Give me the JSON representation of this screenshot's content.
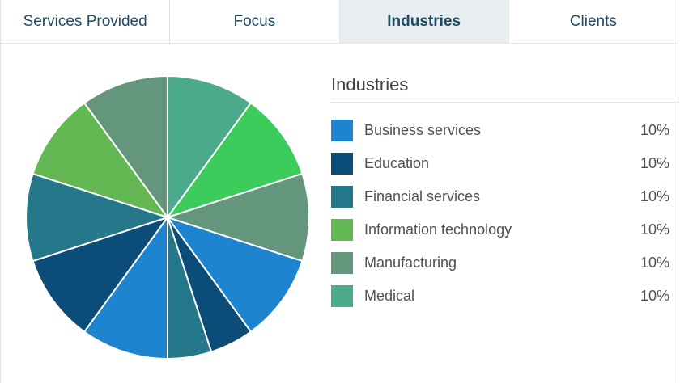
{
  "tabs": [
    {
      "label": "Services Provided",
      "active": false
    },
    {
      "label": "Focus",
      "active": false
    },
    {
      "label": "Industries",
      "active": true
    },
    {
      "label": "Clients",
      "active": false
    }
  ],
  "legend": {
    "title": "Industries",
    "items": [
      {
        "label": "Business services",
        "pct": "10%",
        "color": "#1f84d0"
      },
      {
        "label": "Education",
        "pct": "10%",
        "color": "#0b4d78"
      },
      {
        "label": "Financial services",
        "pct": "10%",
        "color": "#25788a"
      },
      {
        "label": "Information technology",
        "pct": "10%",
        "color": "#64b854"
      },
      {
        "label": "Manufacturing",
        "pct": "10%",
        "color": "#64957d"
      },
      {
        "label": "Medical",
        "pct": "10%",
        "color": "#4caa8c"
      }
    ]
  },
  "chart_data": {
    "type": "pie",
    "title": "",
    "slices": [
      {
        "value": 10,
        "color": "#4caa8c"
      },
      {
        "value": 10,
        "color": "#3ccc5c"
      },
      {
        "value": 10,
        "color": "#64957d"
      },
      {
        "value": 10,
        "color": "#1f84d0"
      },
      {
        "value": 5,
        "color": "#0b4d78"
      },
      {
        "value": 5,
        "color": "#25788a"
      },
      {
        "value": 10,
        "color": "#1f84d0"
      },
      {
        "value": 10,
        "color": "#0b4d78"
      },
      {
        "value": 10,
        "color": "#25788a"
      },
      {
        "value": 10,
        "color": "#64b854"
      },
      {
        "value": 10,
        "color": "#64957d"
      }
    ]
  }
}
